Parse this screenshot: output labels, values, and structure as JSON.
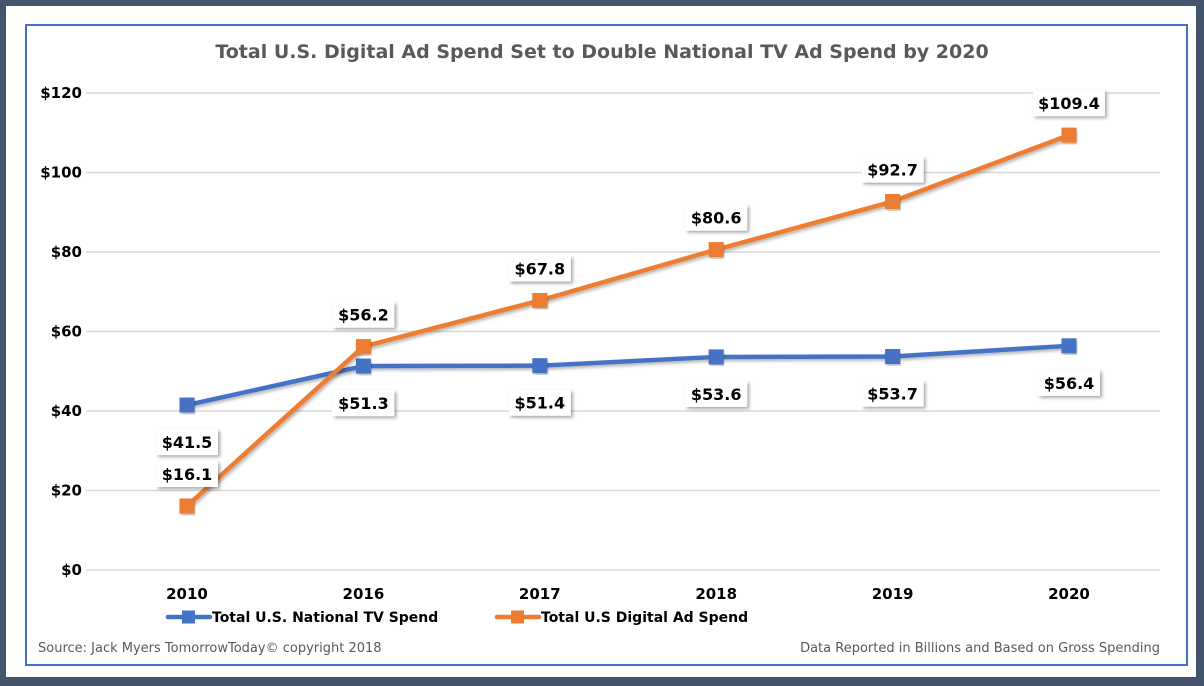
{
  "chart_data": {
    "type": "line",
    "title": "Total U.S. Digital Ad Spend Set to Double National TV Ad Spend by 2020",
    "xlabel": "",
    "ylabel": "",
    "categories": [
      "2010",
      "2016",
      "2017",
      "2018",
      "2019",
      "2020"
    ],
    "ylim": [
      0,
      120
    ],
    "yticks": [
      0,
      20,
      40,
      60,
      80,
      100,
      120
    ],
    "ytick_labels": [
      "$0",
      "$20",
      "$40",
      "$60",
      "$80",
      "$100",
      "$120"
    ],
    "grid": true,
    "legend_position": "bottom-left",
    "series": [
      {
        "name": "Total U.S. National TV Spend",
        "color": "#4472C4",
        "values": [
          41.5,
          51.3,
          51.4,
          53.6,
          53.7,
          56.4
        ],
        "labels": [
          "$41.5",
          "$51.3",
          "$51.4",
          "$53.6",
          "$53.7",
          "$56.4"
        ],
        "label_position": "below"
      },
      {
        "name": "Total U.S Digital Ad Spend",
        "color": "#ED7D31",
        "values": [
          16.1,
          56.2,
          67.8,
          80.6,
          92.7,
          109.4
        ],
        "labels": [
          "$16.1",
          "$56.2",
          "$67.8",
          "$80.6",
          "$92.7",
          "$109.4"
        ],
        "label_position": "above"
      }
    ],
    "source_note": "Source: Jack Myers TomorrowToday© copyright 2018",
    "data_note": "Data Reported in Billions and Based on Gross Spending"
  }
}
